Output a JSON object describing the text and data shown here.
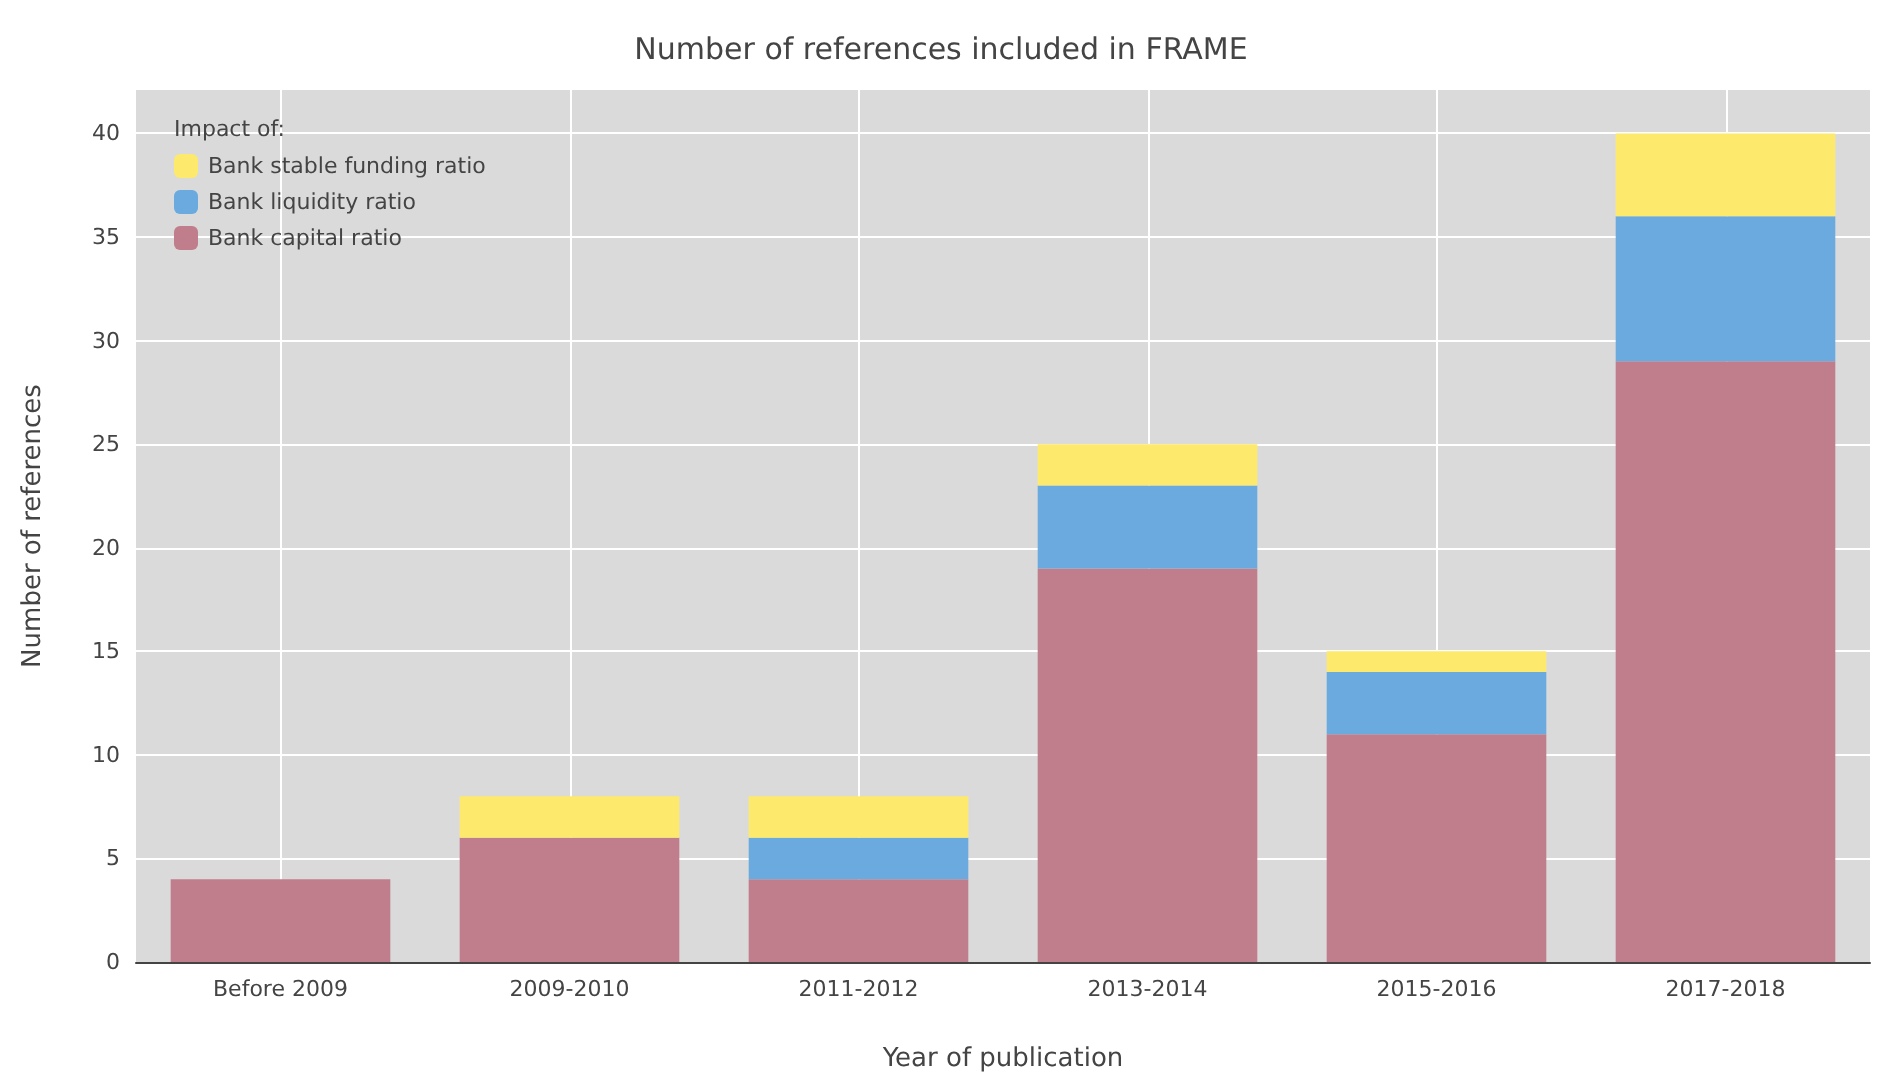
{
  "chart_data": {
    "type": "bar",
    "title": "Number of references included in FRAME",
    "xlabel": "Year of publication",
    "ylabel": "Number of references",
    "legend_title": "Impact of:",
    "categories": [
      "Before 2009",
      "2009-2010",
      "2011-2012",
      "2013-2014",
      "2015-2016",
      "2017-2018"
    ],
    "series": [
      {
        "name": "Bank capital ratio",
        "color": "#c07e8c",
        "values": [
          4,
          6,
          4,
          19,
          11,
          29
        ]
      },
      {
        "name": "Bank liquidity ratio",
        "color": "#6aaade",
        "values": [
          0,
          0,
          2,
          4,
          3,
          7
        ]
      },
      {
        "name": "Bank stable funding ratio",
        "color": "#fde96c",
        "values": [
          0,
          2,
          2,
          2,
          1,
          4
        ]
      }
    ],
    "stacked": true,
    "ylim": [
      0,
      42.1
    ],
    "yticks": [
      0,
      5,
      10,
      15,
      20,
      25,
      30,
      35,
      40
    ],
    "grid": true,
    "legend": "top left"
  }
}
